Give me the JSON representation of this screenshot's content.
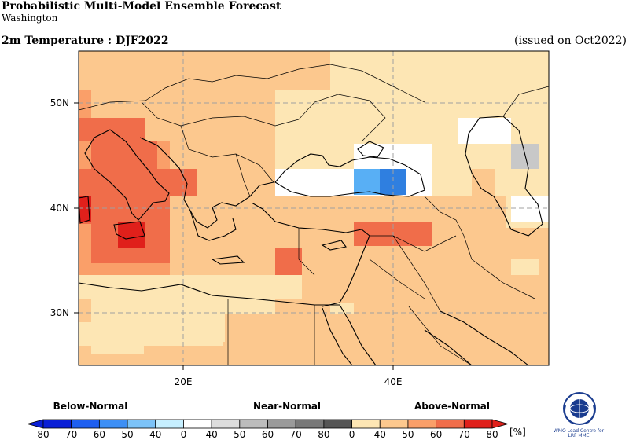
{
  "header": {
    "title": "Probabilistic Multi-Model Ensemble Forecast",
    "subtitle": "Washington",
    "variable": "2m Temperature : DJF2022",
    "issued": "(issued on Oct2022)"
  },
  "map": {
    "lon_labels": [
      "20E",
      "40E"
    ],
    "lat_labels": [
      "50N",
      "40N",
      "30N"
    ],
    "extent": {
      "lon_min": 10,
      "lon_max": 55,
      "lat_min": 25,
      "lat_max": 55
    },
    "colors": {
      "above_40": "#fde6b4",
      "above_50": "#fcc88e",
      "above_60": "#fa9f69",
      "above_70": "#f06d4a",
      "above_80": "#e0201b",
      "near_normal": "#ffffff",
      "near_40": "#c8c8c8",
      "below_50": "#58aff5",
      "below_60": "#2f7fe0"
    }
  },
  "legend": {
    "categories": [
      "Below-Normal",
      "Near-Normal",
      "Above-Normal"
    ],
    "tick_labels": [
      "80",
      "70",
      "60",
      "50",
      "40",
      "0",
      "40",
      "50",
      "60",
      "70",
      "80",
      "0",
      "40",
      "50",
      "60",
      "70",
      "80"
    ],
    "unit": "[%]",
    "colors": [
      "#0a1fd6",
      "#1e5ff0",
      "#3d8ff5",
      "#7cc3f8",
      "#c6efff",
      "#ffffff",
      "#dddddd",
      "#bcbcbc",
      "#9a9a9a",
      "#787878",
      "#555555",
      "#fde6b4",
      "#fcc88e",
      "#fa9f69",
      "#f06d4a",
      "#e0201b"
    ]
  },
  "logo": {
    "caption_line1": "WMO Lead Centre for",
    "caption_line2": "LRF MME"
  }
}
